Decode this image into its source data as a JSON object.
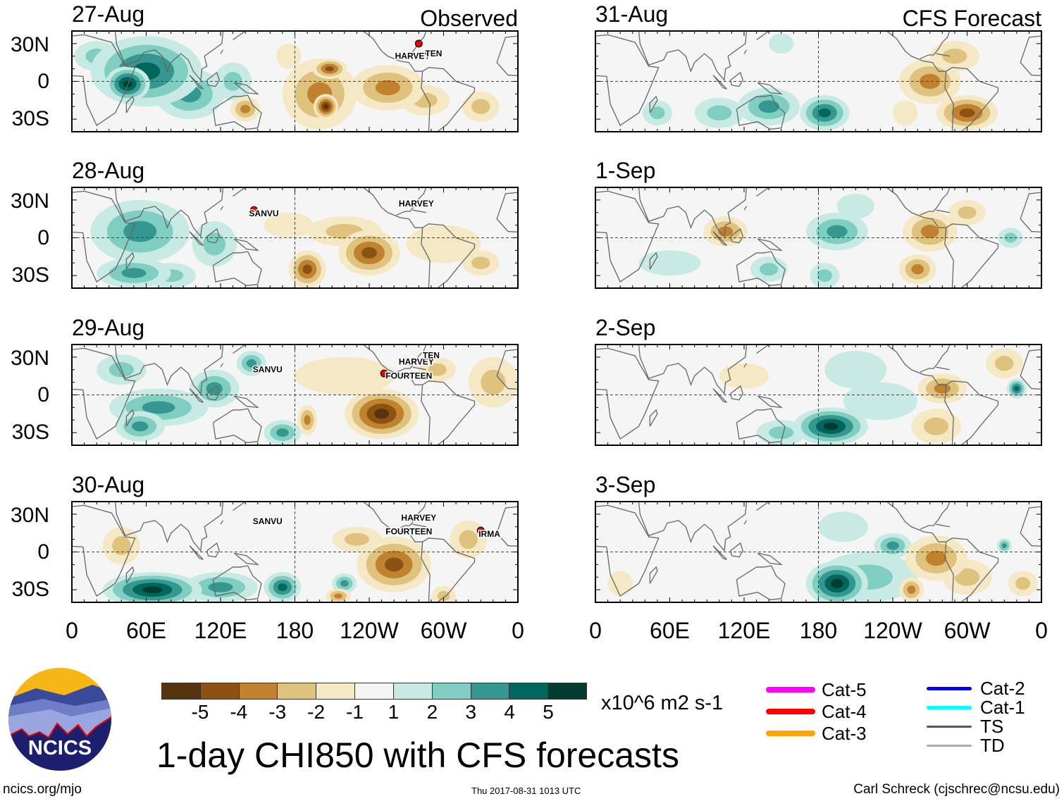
{
  "title": "1-day CHI850 with CFS forecasts",
  "footer": {
    "left": "ncics.org/mjo",
    "center": "Thu 2017-08-31 1013 UTC",
    "right": "Carl Schreck (cjschrec@ncsu.edu)"
  },
  "logo_text": "NCICS",
  "colors": [
    "#563410",
    "#8c5212",
    "#c0822f",
    "#dfc27d",
    "#f5e8c5",
    "#f5f5f5",
    "#c7eae5",
    "#80cdc1",
    "#35978f",
    "#01665e",
    "#003c30"
  ],
  "colorbar": {
    "ticks": [
      "-5",
      "-4",
      "-3",
      "-2",
      "-1",
      "1",
      "2",
      "3",
      "4",
      "5"
    ],
    "units": "x10^6 m2 s-1"
  },
  "storm_legend": [
    {
      "label": "Cat-5",
      "color": "#ff00ff"
    },
    {
      "label": "Cat-4",
      "color": "#ff0000"
    },
    {
      "label": "Cat-3",
      "color": "#ffa500"
    },
    {
      "label": "Cat-2",
      "color": "#0000ff"
    },
    {
      "label": "Cat-1",
      "color": "#00ffff"
    },
    {
      "label": "TS",
      "color": "#555555"
    },
    {
      "label": "TD",
      "color": "#aaaaaa"
    }
  ],
  "columns": [
    {
      "heading": "Observed"
    },
    {
      "heading": "CFS Forecast"
    }
  ],
  "lat_labels": [
    "30N",
    "0",
    "30S"
  ],
  "lon_labels": [
    "0",
    "60E",
    "120E",
    "180",
    "120W",
    "60W",
    "0"
  ],
  "chart_data": {
    "type": "heatmap",
    "title": "1-day CHI850 with CFS forecasts",
    "units": "x10^6 m2 s-1",
    "xlim": [
      0,
      360
    ],
    "ylim": [
      -40,
      40
    ],
    "panels": [
      {
        "date": "27-Aug",
        "column": 0,
        "blobs": [
          [
            60,
            8,
            45,
            28,
            4
          ],
          [
            45,
            -2,
            18,
            14,
            5
          ],
          [
            95,
            -10,
            28,
            20,
            3
          ],
          [
            20,
            20,
            18,
            12,
            2
          ],
          [
            130,
            0,
            15,
            15,
            2
          ],
          [
            140,
            -22,
            12,
            10,
            -3
          ],
          [
            200,
            -10,
            30,
            28,
            -3
          ],
          [
            205,
            -20,
            10,
            10,
            -5
          ],
          [
            208,
            10,
            14,
            8,
            -4
          ],
          [
            255,
            -5,
            30,
            18,
            -3
          ],
          [
            285,
            -15,
            20,
            12,
            -2
          ],
          [
            330,
            -20,
            15,
            12,
            -2
          ],
          [
            175,
            20,
            10,
            10,
            -1
          ]
        ],
        "storms": [
          {
            "name": "HARVEY",
            "lon": 275,
            "lat": 18,
            "marker": true,
            "mlon": 280,
            "mlat": 30
          },
          {
            "name": "TEN",
            "lon": 292,
            "lat": 20,
            "marker": false
          }
        ]
      },
      {
        "date": "28-Aug",
        "column": 0,
        "blobs": [
          [
            55,
            5,
            40,
            25,
            3
          ],
          [
            50,
            -28,
            30,
            12,
            3
          ],
          [
            80,
            -30,
            20,
            10,
            2
          ],
          [
            115,
            -5,
            18,
            18,
            2
          ],
          [
            190,
            -25,
            15,
            15,
            -4
          ],
          [
            240,
            -12,
            25,
            18,
            -4
          ],
          [
            220,
            5,
            30,
            12,
            -2
          ],
          [
            175,
            10,
            20,
            10,
            -1
          ],
          [
            330,
            -20,
            15,
            10,
            -2
          ],
          [
            300,
            -5,
            30,
            15,
            -1
          ]
        ],
        "storms": [
          {
            "name": "SANVU",
            "lon": 155,
            "lat": 17,
            "marker": true,
            "mlon": 147,
            "mlat": 22
          },
          {
            "name": "HARVEY",
            "lon": 278,
            "lat": 25,
            "marker": false
          }
        ]
      },
      {
        "date": "29-Aug",
        "column": 0,
        "blobs": [
          [
            70,
            -10,
            40,
            15,
            3
          ],
          [
            40,
            20,
            20,
            12,
            2
          ],
          [
            55,
            -25,
            20,
            12,
            3
          ],
          [
            115,
            5,
            20,
            15,
            3
          ],
          [
            145,
            25,
            12,
            10,
            3
          ],
          [
            170,
            -30,
            15,
            10,
            3
          ],
          [
            190,
            -20,
            8,
            12,
            -3
          ],
          [
            250,
            -15,
            30,
            20,
            -5
          ],
          [
            220,
            15,
            40,
            15,
            -1
          ],
          [
            340,
            10,
            20,
            20,
            -2
          ],
          [
            295,
            20,
            15,
            10,
            -2
          ]
        ],
        "storms": [
          {
            "name": "SANVU",
            "lon": 158,
            "lat": 18,
            "marker": false
          },
          {
            "name": "HARVEY",
            "lon": 278,
            "lat": 24,
            "marker": false
          },
          {
            "name": "TEN",
            "lon": 290,
            "lat": 29,
            "marker": false
          },
          {
            "name": "FOURTEEN",
            "lon": 272,
            "lat": 13,
            "marker": true,
            "mlon": 252,
            "mlat": 17
          }
        ]
      },
      {
        "date": "30-Aug",
        "column": 0,
        "blobs": [
          [
            65,
            -30,
            40,
            14,
            5
          ],
          [
            120,
            -28,
            30,
            12,
            3
          ],
          [
            170,
            -28,
            15,
            12,
            4
          ],
          [
            220,
            -25,
            10,
            8,
            3
          ],
          [
            40,
            5,
            15,
            15,
            -2
          ],
          [
            260,
            -10,
            30,
            22,
            -4
          ],
          [
            230,
            10,
            20,
            10,
            -2
          ],
          [
            215,
            -35,
            10,
            6,
            -3
          ],
          [
            320,
            10,
            15,
            15,
            -2
          ],
          [
            300,
            -35,
            10,
            8,
            -2
          ]
        ],
        "storms": [
          {
            "name": "SANVU",
            "lon": 158,
            "lat": 22,
            "marker": false
          },
          {
            "name": "HARVEY",
            "lon": 280,
            "lat": 25,
            "marker": false
          },
          {
            "name": "FOURTEEN",
            "lon": 272,
            "lat": 14,
            "marker": false
          },
          {
            "name": "IRMA",
            "lon": 337,
            "lat": 12,
            "marker": true,
            "mlon": 330,
            "mlat": 17
          }
        ]
      },
      {
        "date": "31-Aug",
        "column": 1,
        "blobs": [
          [
            185,
            -25,
            20,
            14,
            4
          ],
          [
            140,
            -20,
            25,
            15,
            3
          ],
          [
            100,
            -25,
            20,
            12,
            2
          ],
          [
            50,
            -25,
            12,
            10,
            2
          ],
          [
            150,
            30,
            10,
            8,
            1
          ],
          [
            270,
            0,
            25,
            18,
            -3
          ],
          [
            300,
            -25,
            25,
            14,
            -4
          ],
          [
            290,
            20,
            20,
            12,
            -2
          ],
          [
            250,
            -25,
            10,
            10,
            -1
          ]
        ],
        "storms": []
      },
      {
        "date": "1-Sep",
        "column": 1,
        "blobs": [
          [
            195,
            5,
            25,
            15,
            3
          ],
          [
            185,
            -30,
            12,
            10,
            2
          ],
          [
            140,
            -25,
            15,
            10,
            2
          ],
          [
            60,
            -20,
            25,
            10,
            1
          ],
          [
            335,
            0,
            10,
            8,
            2
          ],
          [
            210,
            25,
            15,
            10,
            1
          ],
          [
            105,
            5,
            18,
            12,
            -3
          ],
          [
            270,
            5,
            22,
            16,
            -3
          ],
          [
            260,
            -25,
            15,
            12,
            -3
          ],
          [
            300,
            20,
            15,
            10,
            -2
          ]
        ],
        "storms": []
      },
      {
        "date": "2-Sep",
        "column": 1,
        "blobs": [
          [
            190,
            -25,
            30,
            15,
            5
          ],
          [
            150,
            -30,
            20,
            10,
            2
          ],
          [
            210,
            20,
            25,
            15,
            1
          ],
          [
            230,
            -5,
            30,
            15,
            1
          ],
          [
            340,
            5,
            8,
            8,
            4
          ],
          [
            280,
            5,
            20,
            12,
            -3
          ],
          [
            275,
            -25,
            20,
            14,
            -2
          ],
          [
            120,
            15,
            20,
            10,
            -1
          ],
          [
            330,
            25,
            15,
            12,
            -2
          ]
        ],
        "storms": []
      },
      {
        "date": "3-Sep",
        "column": 1,
        "blobs": [
          [
            195,
            -25,
            25,
            18,
            5
          ],
          [
            240,
            5,
            15,
            10,
            3
          ],
          [
            220,
            -20,
            40,
            20,
            2
          ],
          [
            330,
            5,
            6,
            6,
            3
          ],
          [
            275,
            -5,
            25,
            18,
            -3
          ],
          [
            300,
            -20,
            20,
            14,
            -2
          ],
          [
            255,
            -30,
            10,
            10,
            -3
          ],
          [
            345,
            -25,
            12,
            10,
            -2
          ],
          [
            200,
            20,
            20,
            12,
            1
          ],
          [
            20,
            -25,
            10,
            10,
            -1
          ]
        ],
        "storms": []
      }
    ]
  }
}
